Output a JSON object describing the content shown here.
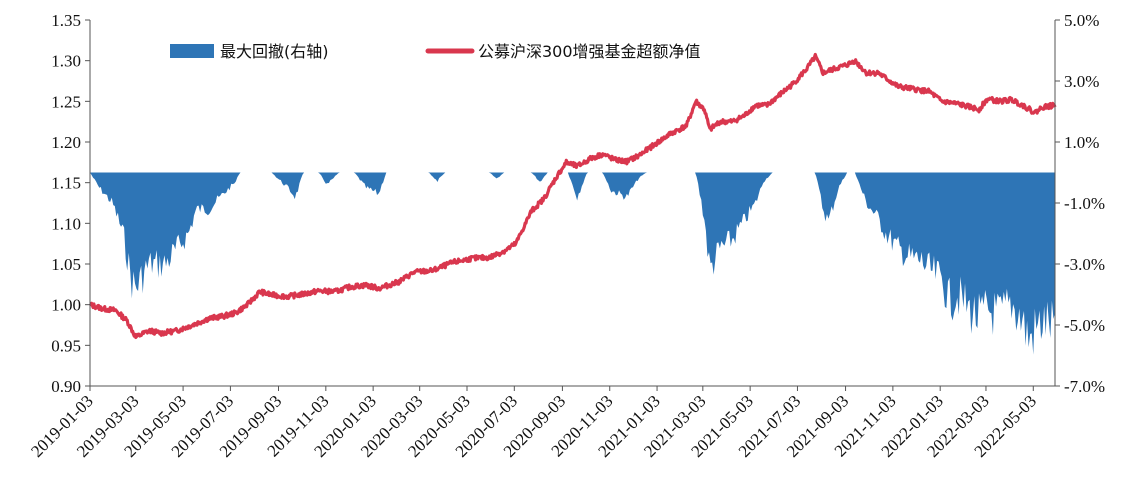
{
  "chart_data": {
    "type": "line+area",
    "title": "",
    "legend": {
      "placement": "top",
      "items": [
        {
          "key": "drawdown",
          "label": "最大回撤(右轴)",
          "color": "#2E75B6",
          "kind": "area"
        },
        {
          "key": "nav",
          "label": "公募沪深300增强基金超额净值",
          "color": "#D9374E",
          "kind": "line"
        }
      ]
    },
    "x_axis": {
      "type": "date",
      "range": [
        "2019-01-03",
        "2022-05-31"
      ],
      "tick_labels": [
        "2019-01-03",
        "2019-03-03",
        "2019-05-03",
        "2019-07-03",
        "2019-09-03",
        "2019-11-03",
        "2020-01-03",
        "2020-03-03",
        "2020-05-03",
        "2020-07-03",
        "2020-09-03",
        "2020-11-03",
        "2021-01-03",
        "2021-03-03",
        "2021-05-03",
        "2021-07-03",
        "2021-09-03",
        "2021-11-03",
        "2022-01-03",
        "2022-03-03",
        "2022-05-03"
      ]
    },
    "y_left": {
      "range": [
        0.9,
        1.35
      ],
      "ticks": [
        0.9,
        0.95,
        1.0,
        1.05,
        1.1,
        1.15,
        1.2,
        1.25,
        1.3,
        1.35
      ],
      "tick_labels": [
        "0.90",
        "0.95",
        "1.00",
        "1.05",
        "1.10",
        "1.15",
        "1.20",
        "1.25",
        "1.30",
        "1.35"
      ]
    },
    "y_right": {
      "range": [
        -7.0,
        5.0
      ],
      "ticks": [
        -7,
        -5,
        -3,
        -1,
        1,
        3,
        5
      ],
      "tick_labels": [
        "-7.0%",
        "-5.0%",
        "-3.0%",
        "-1.0%",
        "1.0%",
        "3.0%",
        "5.0%"
      ]
    },
    "grid": false,
    "series": [
      {
        "name": "公募沪深300增强基金超额净值",
        "axis": "left",
        "points": [
          [
            "2019-01-03",
            1.0
          ],
          [
            "2019-01-20",
            0.995
          ],
          [
            "2019-02-05",
            0.993
          ],
          [
            "2019-02-20",
            0.98
          ],
          [
            "2019-03-03",
            0.96
          ],
          [
            "2019-03-20",
            0.968
          ],
          [
            "2019-04-05",
            0.965
          ],
          [
            "2019-04-25",
            0.968
          ],
          [
            "2019-05-15",
            0.975
          ],
          [
            "2019-06-05",
            0.983
          ],
          [
            "2019-06-25",
            0.986
          ],
          [
            "2019-07-10",
            0.99
          ],
          [
            "2019-07-25",
            1.0
          ],
          [
            "2019-08-10",
            1.016
          ],
          [
            "2019-08-25",
            1.012
          ],
          [
            "2019-09-15",
            1.01
          ],
          [
            "2019-10-05",
            1.013
          ],
          [
            "2019-10-25",
            1.017
          ],
          [
            "2019-11-15",
            1.016
          ],
          [
            "2019-12-05",
            1.022
          ],
          [
            "2019-12-25",
            1.024
          ],
          [
            "2020-01-10",
            1.02
          ],
          [
            "2020-02-05",
            1.028
          ],
          [
            "2020-02-25",
            1.04
          ],
          [
            "2020-03-20",
            1.042
          ],
          [
            "2020-04-15",
            1.052
          ],
          [
            "2020-05-10",
            1.057
          ],
          [
            "2020-06-01",
            1.058
          ],
          [
            "2020-06-20",
            1.066
          ],
          [
            "2020-07-05",
            1.075
          ],
          [
            "2020-07-15",
            1.095
          ],
          [
            "2020-07-25",
            1.115
          ],
          [
            "2020-08-10",
            1.13
          ],
          [
            "2020-08-25",
            1.155
          ],
          [
            "2020-09-08",
            1.175
          ],
          [
            "2020-09-22",
            1.17
          ],
          [
            "2020-10-10",
            1.18
          ],
          [
            "2020-10-25",
            1.185
          ],
          [
            "2020-11-10",
            1.178
          ],
          [
            "2020-11-25",
            1.176
          ],
          [
            "2020-12-10",
            1.183
          ],
          [
            "2020-12-28",
            1.195
          ],
          [
            "2021-01-20",
            1.21
          ],
          [
            "2021-02-10",
            1.22
          ],
          [
            "2021-02-22",
            1.25
          ],
          [
            "2021-03-05",
            1.24
          ],
          [
            "2021-03-12",
            1.215
          ],
          [
            "2021-03-25",
            1.225
          ],
          [
            "2021-04-10",
            1.225
          ],
          [
            "2021-04-25",
            1.232
          ],
          [
            "2021-05-10",
            1.245
          ],
          [
            "2021-05-25",
            1.245
          ],
          [
            "2021-06-10",
            1.258
          ],
          [
            "2021-06-28",
            1.272
          ],
          [
            "2021-07-15",
            1.29
          ],
          [
            "2021-07-26",
            1.305
          ],
          [
            "2021-08-05",
            1.285
          ],
          [
            "2021-08-20",
            1.29
          ],
          [
            "2021-09-05",
            1.295
          ],
          [
            "2021-09-15",
            1.3
          ],
          [
            "2021-09-30",
            1.285
          ],
          [
            "2021-10-15",
            1.285
          ],
          [
            "2021-10-30",
            1.275
          ],
          [
            "2021-11-10",
            1.268
          ],
          [
            "2021-11-30",
            1.265
          ],
          [
            "2021-12-20",
            1.262
          ],
          [
            "2022-01-05",
            1.25
          ],
          [
            "2022-01-25",
            1.247
          ],
          [
            "2022-02-10",
            1.243
          ],
          [
            "2022-02-22",
            1.24
          ],
          [
            "2022-03-05",
            1.253
          ],
          [
            "2022-03-20",
            1.25
          ],
          [
            "2022-04-05",
            1.252
          ],
          [
            "2022-04-20",
            1.245
          ],
          [
            "2022-05-05",
            1.236
          ],
          [
            "2022-05-15",
            1.243
          ],
          [
            "2022-05-31",
            1.245
          ]
        ]
      },
      {
        "name": "最大回撤(右轴)",
        "axis": "right",
        "unit": "%",
        "points": [
          [
            "2019-01-03",
            0.0
          ],
          [
            "2019-01-15",
            -0.5
          ],
          [
            "2019-02-01",
            -1.0
          ],
          [
            "2019-02-15",
            -2.0
          ],
          [
            "2019-02-25",
            -3.5
          ],
          [
            "2019-03-03",
            -3.8
          ],
          [
            "2019-03-20",
            -3.0
          ],
          [
            "2019-04-10",
            -3.0
          ],
          [
            "2019-04-25",
            -2.5
          ],
          [
            "2019-05-10",
            -2.0
          ],
          [
            "2019-05-20",
            -1.2
          ],
          [
            "2019-06-05",
            -1.2
          ],
          [
            "2019-06-20",
            -0.8
          ],
          [
            "2019-07-10",
            -0.3
          ],
          [
            "2019-07-15",
            0.0
          ],
          [
            "2019-08-25",
            0.0
          ],
          [
            "2019-09-15",
            -0.5
          ],
          [
            "2019-09-25",
            -0.8
          ],
          [
            "2019-10-05",
            0.0
          ],
          [
            "2019-10-25",
            0.0
          ],
          [
            "2019-11-05",
            -0.4
          ],
          [
            "2019-11-20",
            0.0
          ],
          [
            "2019-12-10",
            0.0
          ],
          [
            "2019-12-25",
            -0.5
          ],
          [
            "2020-01-10",
            -0.7
          ],
          [
            "2020-01-20",
            0.0
          ],
          [
            "2020-03-15",
            0.0
          ],
          [
            "2020-03-25",
            -0.3
          ],
          [
            "2020-04-05",
            0.0
          ],
          [
            "2020-06-01",
            0.0
          ],
          [
            "2020-06-10",
            -0.2
          ],
          [
            "2020-06-20",
            0.0
          ],
          [
            "2020-07-25",
            0.0
          ],
          [
            "2020-08-05",
            -0.3
          ],
          [
            "2020-08-15",
            0.0
          ],
          [
            "2020-09-10",
            0.0
          ],
          [
            "2020-09-22",
            -0.8
          ],
          [
            "2020-10-05",
            0.0
          ],
          [
            "2020-10-25",
            0.0
          ],
          [
            "2020-11-05",
            -0.6
          ],
          [
            "2020-11-25",
            -0.8
          ],
          [
            "2020-12-10",
            -0.2
          ],
          [
            "2020-12-20",
            0.0
          ],
          [
            "2021-02-22",
            0.0
          ],
          [
            "2021-03-05",
            -1.5
          ],
          [
            "2021-03-12",
            -3.2
          ],
          [
            "2021-03-25",
            -2.5
          ],
          [
            "2021-04-10",
            -2.2
          ],
          [
            "2021-04-25",
            -1.6
          ],
          [
            "2021-05-10",
            -1.0
          ],
          [
            "2021-05-20",
            -0.3
          ],
          [
            "2021-06-01",
            0.0
          ],
          [
            "2021-07-26",
            0.0
          ],
          [
            "2021-08-05",
            -1.2
          ],
          [
            "2021-08-12",
            -1.6
          ],
          [
            "2021-08-25",
            -0.5
          ],
          [
            "2021-09-05",
            0.0
          ],
          [
            "2021-09-15",
            0.0
          ],
          [
            "2021-09-30",
            -1.0
          ],
          [
            "2021-10-15",
            -1.5
          ],
          [
            "2021-10-25",
            -2.0
          ],
          [
            "2021-11-10",
            -2.5
          ],
          [
            "2021-11-25",
            -2.8
          ],
          [
            "2021-12-10",
            -2.9
          ],
          [
            "2021-12-20",
            -3.2
          ],
          [
            "2022-01-05",
            -3.5
          ],
          [
            "2022-01-15",
            -4.2
          ],
          [
            "2022-01-25",
            -4.0
          ],
          [
            "2022-02-10",
            -4.5
          ],
          [
            "2022-02-22",
            -4.8
          ],
          [
            "2022-03-05",
            -4.5
          ],
          [
            "2022-03-20",
            -4.7
          ],
          [
            "2022-04-05",
            -4.3
          ],
          [
            "2022-04-20",
            -4.9
          ],
          [
            "2022-04-27",
            -5.5
          ],
          [
            "2022-05-05",
            -5.2
          ],
          [
            "2022-05-15",
            -4.9
          ],
          [
            "2022-05-31",
            -5.0
          ]
        ]
      }
    ]
  }
}
